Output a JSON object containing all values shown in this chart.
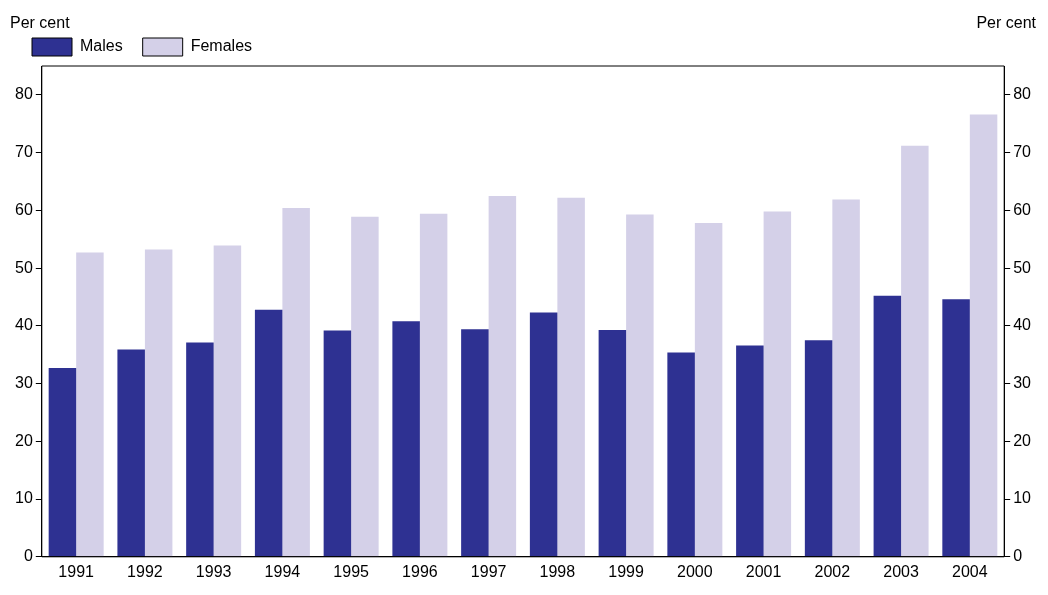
{
  "chart_data": {
    "type": "bar",
    "ylabel": "Per cent",
    "y2label": "Per cent",
    "categories": [
      "1991",
      "1992",
      "1993",
      "1994",
      "1995",
      "1996",
      "1997",
      "1998",
      "1999",
      "2000",
      "2001",
      "2002",
      "2003",
      "2004"
    ],
    "series": [
      {
        "name": "Males",
        "color": "#2e3192",
        "values": [
          32.7,
          35.9,
          37.1,
          42.8,
          39.2,
          40.8,
          39.4,
          42.3,
          39.3,
          35.4,
          36.6,
          37.5,
          45.2,
          44.6
        ]
      },
      {
        "name": "Females",
        "color": "#d4d0e8",
        "values": [
          52.7,
          53.2,
          53.9,
          60.4,
          58.9,
          59.4,
          62.5,
          62.2,
          59.3,
          57.8,
          59.8,
          61.9,
          71.2,
          76.6
        ]
      }
    ],
    "ylim": [
      0,
      85
    ],
    "yticks": [
      0,
      10,
      20,
      30,
      40,
      50,
      60,
      70,
      80
    ],
    "y2lim": [
      0,
      85
    ],
    "y2ticks": [
      0,
      10,
      20,
      30,
      40,
      50,
      60,
      70,
      80
    ],
    "grid": false,
    "legend": "top left"
  }
}
